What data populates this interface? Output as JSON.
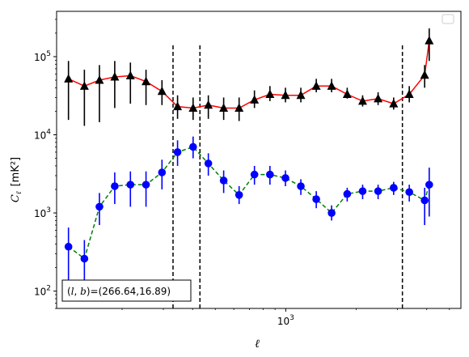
{
  "chart_data": {
    "type": "scatter",
    "title": "",
    "xlabel": "ℓ",
    "ylabel": "C",
    "ylabel_sub": "ℓ",
    "ylabel_unit": "[mK²]",
    "xscale": "log",
    "yscale": "log",
    "xlim": [
      105,
      5600
    ],
    "ylim": [
      60,
      380000
    ],
    "xticks": [
      {
        "value": 1000,
        "base": "10",
        "exp": "3"
      }
    ],
    "yticks": [
      {
        "value": 100,
        "base": "10",
        "exp": "2"
      },
      {
        "value": 1000,
        "base": "10",
        "exp": "3"
      },
      {
        "value": 10000,
        "base": "10",
        "exp": "4"
      },
      {
        "value": 100000,
        "base": "10",
        "exp": "5"
      }
    ],
    "vlines": [
      330,
      430,
      3150
    ],
    "vline_ymax": 150000,
    "legend": "top-right",
    "annotation": "(l, b)=(266.64,16.89)",
    "series": [
      {
        "color": "#ff0000",
        "line": "solid",
        "marker": "triangle",
        "marker_color": "#000000",
        "errorbar_color": "#000000",
        "x": [
          118,
          138,
          160,
          186,
          217,
          253,
          296,
          345,
          402,
          467,
          543,
          632,
          735,
          856,
          997,
          1160,
          1350,
          1570,
          1830,
          2130,
          2480,
          2890,
          3370,
          3920,
          4100
        ],
        "y": [
          52000,
          42000,
          50000,
          55000,
          57000,
          48000,
          36000,
          23000,
          22000,
          24000,
          22000,
          22000,
          28000,
          33000,
          32000,
          32000,
          42000,
          42000,
          33000,
          27000,
          29000,
          25000,
          33000,
          58000,
          160000
        ],
        "yerr_low": [
          15500,
          13000,
          14500,
          22000,
          25000,
          24000,
          24000,
          16000,
          15500,
          16000,
          15500,
          15000,
          22000,
          27000,
          26000,
          26000,
          35000,
          35000,
          29000,
          23000,
          24000,
          21000,
          26000,
          40000,
          88000
        ],
        "yerr_high": [
          88000,
          68000,
          78000,
          88000,
          84000,
          68000,
          50000,
          32000,
          30000,
          32000,
          30000,
          30000,
          37000,
          42000,
          40000,
          40000,
          52000,
          52000,
          40000,
          32000,
          35000,
          30000,
          42000,
          78000,
          230000
        ]
      },
      {
        "color": "#008000",
        "line": "dashed",
        "marker": "circle",
        "marker_color": "#0000ff",
        "errorbar_color": "#0000ff",
        "x": [
          118,
          138,
          160,
          186,
          217,
          253,
          296,
          345,
          402,
          467,
          543,
          632,
          735,
          856,
          997,
          1160,
          1350,
          1570,
          1830,
          2130,
          2480,
          2890,
          3370,
          3920,
          4100
        ],
        "y": [
          370,
          260,
          1200,
          2200,
          2300,
          2300,
          3300,
          6000,
          7000,
          4300,
          2600,
          1700,
          3100,
          3100,
          2800,
          2200,
          1500,
          1000,
          1750,
          1900,
          1900,
          2100,
          1850,
          1450,
          2300
        ],
        "yerr_low": [
          100,
          80,
          700,
          1300,
          1200,
          1200,
          2000,
          4000,
          5000,
          3000,
          1800,
          1300,
          2300,
          2300,
          2200,
          1700,
          1150,
          800,
          1400,
          1500,
          1500,
          1700,
          1400,
          700,
          900
        ],
        "yerr_high": [
          650,
          450,
          1800,
          3300,
          3400,
          3400,
          4800,
          8500,
          9500,
          5800,
          3500,
          2200,
          4000,
          4000,
          3500,
          2700,
          1900,
          1250,
          2100,
          2300,
          2300,
          2500,
          2300,
          2100,
          3800
        ]
      }
    ]
  }
}
